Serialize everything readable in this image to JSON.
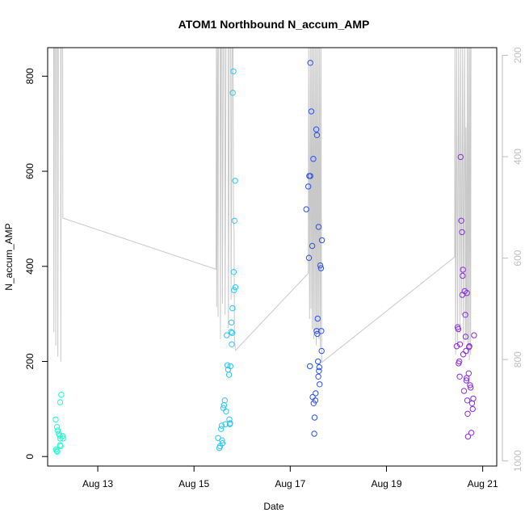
{
  "chart_data": {
    "type": "scatter",
    "title": "ATOM1 Northbound N_accum_AMP",
    "xlabel": "Date",
    "ylabel": "N_accum_AMP",
    "xlim": [
      "2021-08-11T23:00",
      "2021-08-21T07:00"
    ],
    "ylim": [
      -20,
      860
    ],
    "y2lim": [
      1010,
      185
    ],
    "x_ticks": [
      {
        "label": "Aug 13",
        "value": "2021-08-13"
      },
      {
        "label": "Aug 15",
        "value": "2021-08-15"
      },
      {
        "label": "Aug 17",
        "value": "2021-08-17"
      },
      {
        "label": "Aug 19",
        "value": "2021-08-19"
      },
      {
        "label": "Aug 21",
        "value": "2021-08-21"
      }
    ],
    "y_ticks": [
      "0",
      "200",
      "400",
      "600",
      "800"
    ],
    "y2_ticks": [
      "200",
      "400",
      "600",
      "800",
      "1000"
    ],
    "colors": {
      "points_aug12": "#1affd0",
      "points_aug15": "#27c7f5",
      "points_aug17": "#2a50f0",
      "points_aug20": "#8a2be2",
      "line": "#c8c8c8",
      "axis": "#000000",
      "right_axis": "#bebebe"
    },
    "series": [
      {
        "color": "#1affd0",
        "points": [
          [
            "2021-08-12T03:00",
            78
          ],
          [
            "2021-08-12T03:40",
            62
          ],
          [
            "2021-08-12T04:00",
            55
          ],
          [
            "2021-08-12T04:30",
            48
          ],
          [
            "2021-08-12T05:00",
            44
          ],
          [
            "2021-08-12T05:20",
            38
          ],
          [
            "2021-08-12T03:10",
            15
          ],
          [
            "2021-08-12T03:30",
            12
          ],
          [
            "2021-08-12T03:50",
            10
          ],
          [
            "2021-08-12T05:10",
            24
          ],
          [
            "2021-08-12T05:30",
            22
          ],
          [
            "2021-08-12T05:45",
            130
          ],
          [
            "2021-08-12T05:15",
            114
          ],
          [
            "2021-08-12T06:30",
            43
          ],
          [
            "2021-08-12T06:40",
            38
          ]
        ]
      },
      {
        "color": "#27c7f5",
        "points": [
          [
            "2021-08-15T12:00",
            39
          ],
          [
            "2021-08-15T12:40",
            18
          ],
          [
            "2021-08-15T13:00",
            22
          ],
          [
            "2021-08-15T13:30",
            58
          ],
          [
            "2021-08-15T13:50",
            65
          ],
          [
            "2021-08-15T14:00",
            34
          ],
          [
            "2021-08-15T14:10",
            28
          ],
          [
            "2021-08-15T14:40",
            102
          ],
          [
            "2021-08-15T15:00",
            108
          ],
          [
            "2021-08-15T15:20",
            118
          ],
          [
            "2021-08-15T15:40",
            68
          ],
          [
            "2021-08-15T16:00",
            95
          ],
          [
            "2021-08-15T16:20",
            255
          ],
          [
            "2021-08-15T16:40",
            192
          ],
          [
            "2021-08-15T17:00",
            183
          ],
          [
            "2021-08-15T17:30",
            172
          ],
          [
            "2021-08-15T17:40",
            78
          ],
          [
            "2021-08-15T17:50",
            68
          ],
          [
            "2021-08-15T18:00",
            70
          ],
          [
            "2021-08-15T18:10",
            190
          ],
          [
            "2021-08-15T18:30",
            262
          ],
          [
            "2021-08-15T18:40",
            282
          ],
          [
            "2021-08-15T18:50",
            236
          ],
          [
            "2021-08-15T19:00",
            260
          ],
          [
            "2021-08-15T19:10",
            312
          ],
          [
            "2021-08-15T19:20",
            765
          ],
          [
            "2021-08-15T19:40",
            810
          ],
          [
            "2021-08-15T19:50",
            388
          ],
          [
            "2021-08-15T20:00",
            350
          ],
          [
            "2021-08-15T20:10",
            496
          ],
          [
            "2021-08-15T20:30",
            580
          ],
          [
            "2021-08-15T20:40",
            356
          ]
        ]
      },
      {
        "color": "#2a50f0",
        "points": [
          [
            "2021-08-17T08:00",
            520
          ],
          [
            "2021-08-17T09:00",
            568
          ],
          [
            "2021-08-17T09:30",
            590
          ],
          [
            "2021-08-17T10:00",
            590
          ],
          [
            "2021-08-17T09:20",
            418
          ],
          [
            "2021-08-17T09:50",
            190
          ],
          [
            "2021-08-17T10:00",
            828
          ],
          [
            "2021-08-17T10:30",
            726
          ],
          [
            "2021-08-17T11:00",
            443
          ],
          [
            "2021-08-17T11:30",
            626
          ],
          [
            "2021-08-17T11:10",
            125
          ],
          [
            "2021-08-17T11:40",
            112
          ],
          [
            "2021-08-17T12:00",
            48
          ],
          [
            "2021-08-17T12:10",
            82
          ],
          [
            "2021-08-17T12:30",
            118
          ],
          [
            "2021-08-17T12:40",
            133
          ],
          [
            "2021-08-17T13:00",
            688
          ],
          [
            "2021-08-17T13:20",
            676
          ],
          [
            "2021-08-17T13:10",
            264
          ],
          [
            "2021-08-17T13:30",
            258
          ],
          [
            "2021-08-17T13:40",
            290
          ],
          [
            "2021-08-17T13:50",
            200
          ],
          [
            "2021-08-17T14:00",
            168
          ],
          [
            "2021-08-17T14:20",
            180
          ],
          [
            "2021-08-17T14:30",
            188
          ],
          [
            "2021-08-17T14:10",
            483
          ],
          [
            "2021-08-17T14:40",
            152
          ],
          [
            "2021-08-17T15:00",
            402
          ],
          [
            "2021-08-17T15:20",
            396
          ],
          [
            "2021-08-17T15:30",
            264
          ],
          [
            "2021-08-17T15:40",
            222
          ],
          [
            "2021-08-17T15:50",
            455
          ]
        ]
      },
      {
        "color": "#8a2be2",
        "points": [
          [
            "2021-08-20T11:00",
            232
          ],
          [
            "2021-08-20T11:30",
            272
          ],
          [
            "2021-08-20T11:50",
            268
          ],
          [
            "2021-08-20T12:00",
            196
          ],
          [
            "2021-08-20T12:20",
            200
          ],
          [
            "2021-08-20T12:30",
            168
          ],
          [
            "2021-08-20T12:40",
            236
          ],
          [
            "2021-08-20T13:00",
            630
          ],
          [
            "2021-08-20T13:20",
            496
          ],
          [
            "2021-08-20T13:40",
            472
          ],
          [
            "2021-08-20T13:50",
            340
          ],
          [
            "2021-08-20T14:00",
            380
          ],
          [
            "2021-08-20T14:10",
            393
          ],
          [
            "2021-08-20T14:20",
            215
          ],
          [
            "2021-08-20T14:40",
            138
          ],
          [
            "2021-08-20T15:00",
            348
          ],
          [
            "2021-08-20T15:20",
            298
          ],
          [
            "2021-08-20T15:30",
            252
          ],
          [
            "2021-08-20T15:40",
            222
          ],
          [
            "2021-08-20T15:50",
            160
          ],
          [
            "2021-08-20T16:00",
            165
          ],
          [
            "2021-08-20T16:10",
            344
          ],
          [
            "2021-08-20T16:20",
            118
          ],
          [
            "2021-08-20T16:30",
            90
          ],
          [
            "2021-08-20T16:40",
            42
          ],
          [
            "2021-08-20T17:00",
            175
          ],
          [
            "2021-08-20T17:10",
            230
          ],
          [
            "2021-08-20T17:20",
            232
          ],
          [
            "2021-08-20T17:40",
            150
          ],
          [
            "2021-08-20T18:00",
            145
          ],
          [
            "2021-08-20T18:20",
            50
          ],
          [
            "2021-08-20T18:40",
            112
          ],
          [
            "2021-08-20T19:00",
            100
          ],
          [
            "2021-08-20T19:20",
            122
          ],
          [
            "2021-08-20T19:40",
            255
          ]
        ]
      }
    ],
    "line_series": {
      "axis": "right",
      "color": "#c8c8c8",
      "points": [
        [
          "2021-08-12T02:00",
          185
        ],
        [
          "2021-08-12T02:05",
          746
        ],
        [
          "2021-08-12T02:20",
          185
        ],
        [
          "2021-08-12T03:00",
          185
        ],
        [
          "2021-08-12T03:05",
          772
        ],
        [
          "2021-08-12T03:20",
          185
        ],
        [
          "2021-08-12T04:00",
          185
        ],
        [
          "2021-08-12T04:05",
          794
        ],
        [
          "2021-08-12T04:20",
          185
        ],
        [
          "2021-08-12T05:30",
          185
        ],
        [
          "2021-08-12T05:35",
          804
        ],
        [
          "2021-08-12T05:45",
          185
        ],
        [
          "2021-08-12T06:30",
          185
        ],
        [
          "2021-08-12T06:35",
          521
        ],
        [
          "2021-08-15T11:00",
          622
        ],
        [
          "2021-08-15T11:10",
          185
        ],
        [
          "2021-08-15T11:20",
          696
        ],
        [
          "2021-08-15T11:40",
          185
        ],
        [
          "2021-08-15T12:00",
          716
        ],
        [
          "2021-08-15T12:10",
          185
        ],
        [
          "2021-08-15T13:00",
          185
        ],
        [
          "2021-08-15T13:10",
          760
        ],
        [
          "2021-08-15T13:30",
          185
        ],
        [
          "2021-08-15T14:00",
          185
        ],
        [
          "2021-08-15T14:10",
          690
        ],
        [
          "2021-08-15T14:40",
          185
        ],
        [
          "2021-08-15T15:20",
          185
        ],
        [
          "2021-08-15T15:30",
          712
        ],
        [
          "2021-08-15T16:00",
          185
        ],
        [
          "2021-08-15T17:00",
          185
        ],
        [
          "2021-08-15T17:10",
          738
        ],
        [
          "2021-08-15T17:40",
          185
        ],
        [
          "2021-08-15T18:20",
          185
        ],
        [
          "2021-08-15T18:30",
          682
        ],
        [
          "2021-08-15T19:00",
          185
        ],
        [
          "2021-08-15T19:30",
          185
        ],
        [
          "2021-08-15T19:40",
          520
        ],
        [
          "2021-08-15T20:00",
          545
        ],
        [
          "2021-08-15T20:10",
          760
        ],
        [
          "2021-08-15T20:40",
          782
        ],
        [
          "2021-08-17T09:00",
          630
        ],
        [
          "2021-08-17T09:10",
          185
        ],
        [
          "2021-08-17T09:40",
          720
        ],
        [
          "2021-08-17T10:00",
          185
        ],
        [
          "2021-08-17T10:20",
          700
        ],
        [
          "2021-08-17T10:40",
          185
        ],
        [
          "2021-08-17T11:00",
          740
        ],
        [
          "2021-08-17T11:20",
          185
        ],
        [
          "2021-08-17T11:40",
          760
        ],
        [
          "2021-08-17T12:00",
          185
        ],
        [
          "2021-08-17T12:20",
          742
        ],
        [
          "2021-08-17T12:40",
          185
        ],
        [
          "2021-08-17T13:00",
          772
        ],
        [
          "2021-08-17T13:20",
          185
        ],
        [
          "2021-08-17T13:40",
          748
        ],
        [
          "2021-08-17T14:00",
          185
        ],
        [
          "2021-08-17T14:20",
          760
        ],
        [
          "2021-08-17T14:40",
          185
        ],
        [
          "2021-08-17T15:00",
          776
        ],
        [
          "2021-08-17T15:20",
          185
        ],
        [
          "2021-08-17T15:40",
          806
        ],
        [
          "2021-08-20T10:00",
          598
        ],
        [
          "2021-08-20T10:10",
          185
        ],
        [
          "2021-08-20T10:30",
          790
        ],
        [
          "2021-08-20T11:00",
          185
        ],
        [
          "2021-08-20T11:30",
          770
        ],
        [
          "2021-08-20T12:00",
          185
        ],
        [
          "2021-08-20T12:40",
          748
        ],
        [
          "2021-08-20T13:00",
          185
        ],
        [
          "2021-08-20T13:30",
          712
        ],
        [
          "2021-08-20T14:00",
          185
        ],
        [
          "2021-08-20T14:30",
          770
        ],
        [
          "2021-08-20T15:00",
          185
        ],
        [
          "2021-08-20T15:30",
          760
        ],
        [
          "2021-08-20T15:40",
          342
        ],
        [
          "2021-08-20T16:00",
          760
        ],
        [
          "2021-08-20T16:20",
          185
        ],
        [
          "2021-08-20T16:40",
          790
        ],
        [
          "2021-08-20T17:00",
          185
        ],
        [
          "2021-08-20T17:20",
          802
        ],
        [
          "2021-08-20T17:40",
          185
        ],
        [
          "2021-08-20T18:00",
          790
        ],
        [
          "2021-08-20T18:10",
          185
        ]
      ]
    }
  }
}
